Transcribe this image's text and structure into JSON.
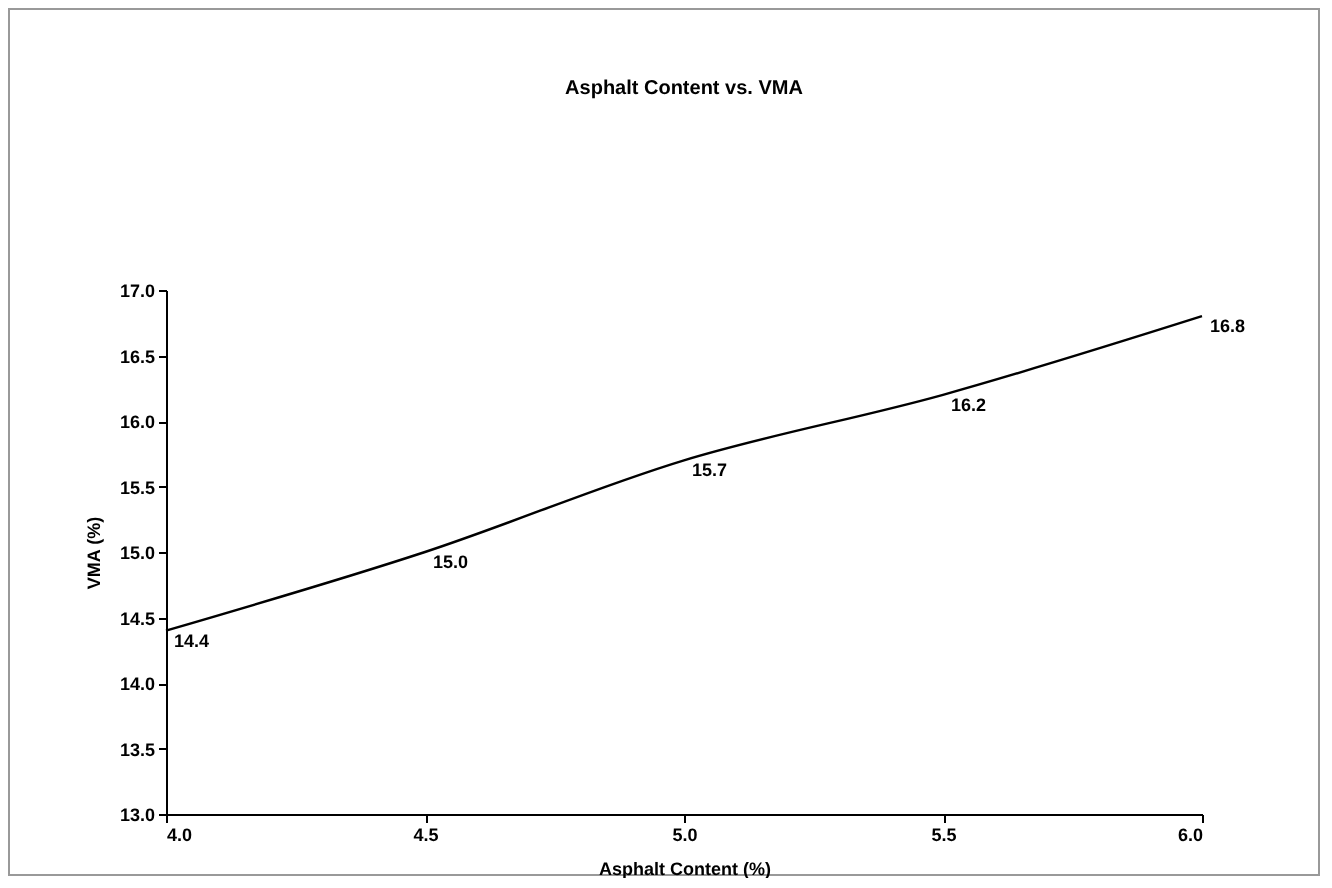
{
  "chart_data": {
    "type": "line",
    "title": "Asphalt Content vs. VMA",
    "xlabel": "Asphalt Content (%)",
    "ylabel": "VMA (%)",
    "x": [
      4.0,
      4.5,
      5.0,
      5.5,
      6.0
    ],
    "series": [
      {
        "color": "#000000",
        "values": [
          14.4,
          15.0,
          15.7,
          16.2,
          16.8
        ],
        "value_labels": [
          "14.4",
          "15.0",
          "15.7",
          "16.2",
          "16.8"
        ]
      }
    ],
    "xlim": [
      4.0,
      6.0
    ],
    "xticks": [
      {
        "value": 4.0,
        "label": "4.0"
      },
      {
        "value": 4.5,
        "label": "4.5"
      },
      {
        "value": 5.0,
        "label": "5.0"
      },
      {
        "value": 5.5,
        "label": "5.5"
      },
      {
        "value": 6.0,
        "label": "6.0"
      }
    ],
    "ylim": [
      13.0,
      17.0
    ],
    "yticks": [
      {
        "value": 13.0,
        "label": "13.0"
      },
      {
        "value": 13.5,
        "label": "13.5"
      },
      {
        "value": 14.0,
        "label": "14.0"
      },
      {
        "value": 14.5,
        "label": "14.5"
      },
      {
        "value": 15.0,
        "label": "15.0"
      },
      {
        "value": 15.5,
        "label": "15.5"
      },
      {
        "value": 16.0,
        "label": "16.0"
      },
      {
        "value": 16.5,
        "label": "16.5"
      },
      {
        "value": 17.0,
        "label": "17.0"
      }
    ],
    "grid": false,
    "legend": false,
    "marker": "none",
    "line_style": "solid",
    "data_labels": true
  }
}
